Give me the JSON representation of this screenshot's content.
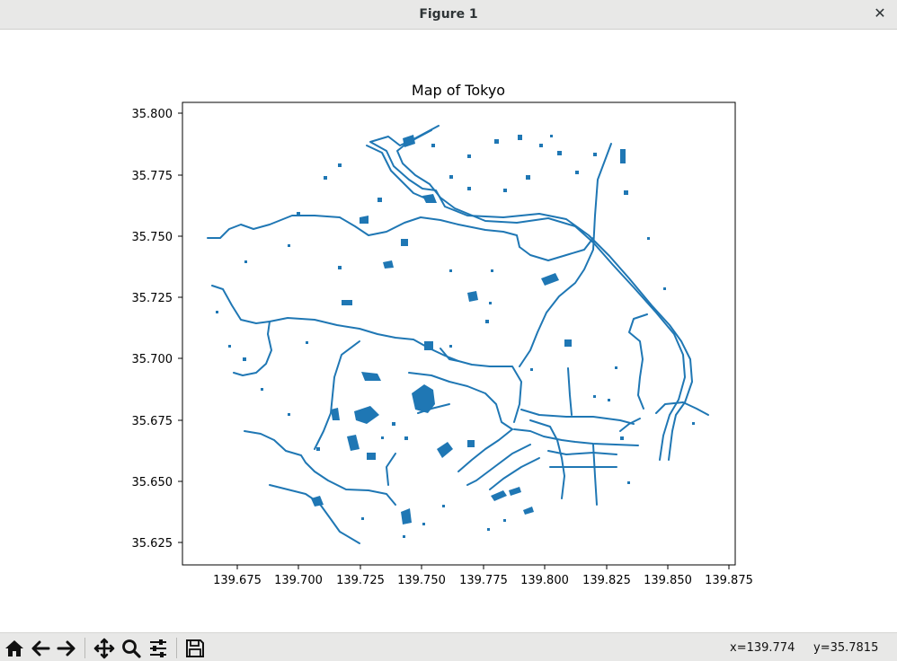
{
  "window": {
    "title": "Figure 1",
    "close_glyph": "✕"
  },
  "figure": {
    "title": "Map of Tokyo",
    "x_ticks": [
      "139.675",
      "139.700",
      "139.725",
      "139.750",
      "139.775",
      "139.800",
      "139.825",
      "139.850",
      "139.875"
    ],
    "y_ticks": [
      "35.800",
      "35.775",
      "35.750",
      "35.725",
      "35.700",
      "35.675",
      "35.650",
      "35.625"
    ],
    "line_color": "#1f77b4"
  },
  "toolbar": {
    "buttons": [
      {
        "name": "home-button",
        "icon": "home-icon"
      },
      {
        "name": "back-button",
        "icon": "arrow-left-icon"
      },
      {
        "name": "forward-button",
        "icon": "arrow-right-icon"
      },
      {
        "name": "pan-button",
        "icon": "move-icon"
      },
      {
        "name": "zoom-button",
        "icon": "magnifier-icon"
      },
      {
        "name": "configure-subplots-button",
        "icon": "sliders-icon"
      },
      {
        "name": "save-button",
        "icon": "floppy-disk-icon"
      }
    ],
    "coord_x": "x=139.774",
    "coord_y": "y=35.7815"
  }
}
